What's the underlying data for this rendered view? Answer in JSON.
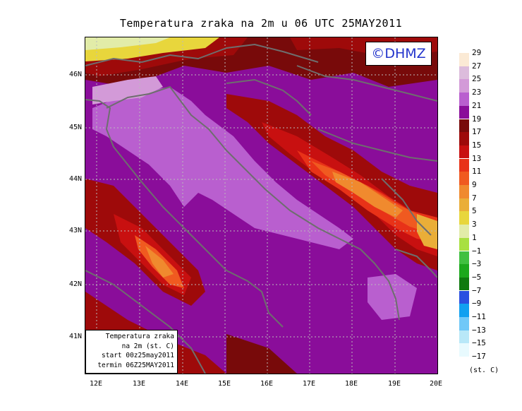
{
  "title": "Temperatura zraka na 2m u 06 UTC 25MAY2011",
  "logo": "©DHMZ",
  "info_box": [
    "Temperatura zraka",
    "na 2m (st. C)",
    "start 00z25may2011",
    "termin 06Z25MAY2011"
  ],
  "lat_labels": [
    "46N",
    "45N",
    "44N",
    "43N",
    "42N",
    "41N"
  ],
  "lon_labels": [
    "12E",
    "13E",
    "14E",
    "15E",
    "16E",
    "17E",
    "18E",
    "19E",
    "20E"
  ],
  "legend": {
    "labels": [
      "29",
      "27",
      "25",
      "23",
      "21",
      "19",
      "17",
      "15",
      "13",
      "11",
      "9",
      "7",
      "5",
      "3",
      "1",
      "−1",
      "−3",
      "−5",
      "−7",
      "−9",
      "−11",
      "−13",
      "−15",
      "−17"
    ],
    "colors": [
      "#fbead5",
      "#dcbcdc",
      "#d39ad8",
      "#b95fcf",
      "#8a0d9a",
      "#780a0a",
      "#9e0a0a",
      "#c81010",
      "#e83218",
      "#f05a20",
      "#f08a2e",
      "#eaae38",
      "#e8d63c",
      "#e2eca8",
      "#a8e040",
      "#40c040",
      "#1ca81c",
      "#0f7a0f",
      "#2a50e0",
      "#10a0f0",
      "#70c8f8",
      "#b8e8f8",
      "#e8fafe"
    ],
    "units": "(st. C)"
  },
  "colors": {
    "background": "#8a0d9a",
    "coastline": "#6e6e6e",
    "grid": "#bbbbbb"
  }
}
